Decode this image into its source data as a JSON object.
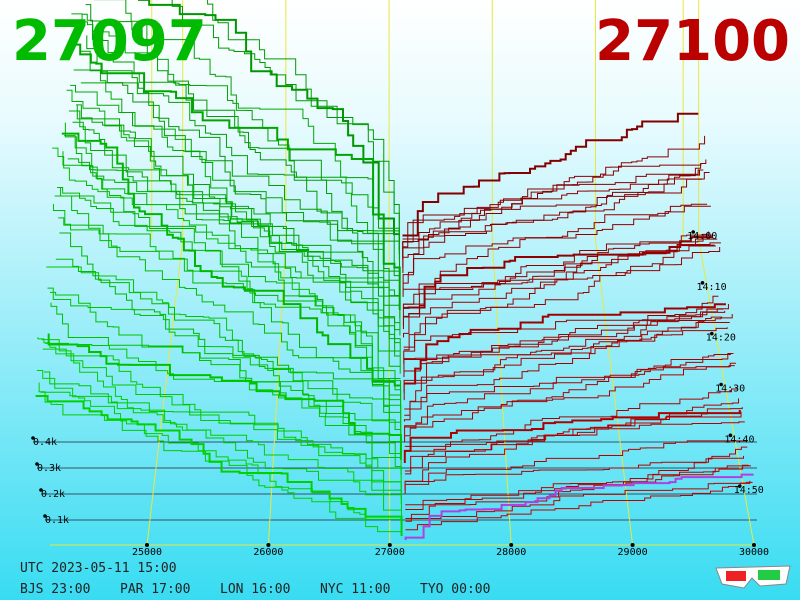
{
  "bid": "27097",
  "ask": "27100",
  "price_axis": [
    "25000",
    "26000",
    "27000",
    "28000",
    "29000",
    "30000"
  ],
  "volume_axis": [
    "0.1k",
    "0.2k",
    "0.3k",
    "0.4k"
  ],
  "time_axis": [
    "14:00",
    "14:10",
    "14:20",
    "14:30",
    "14:40",
    "14:50"
  ],
  "clock": {
    "utc": "UTC 2023-05-11 15:00",
    "zones": [
      "BJS 23:00",
      "PAR 17:00",
      "LON 16:00",
      "NYC 11:00",
      "TYO 00:00"
    ]
  }
}
